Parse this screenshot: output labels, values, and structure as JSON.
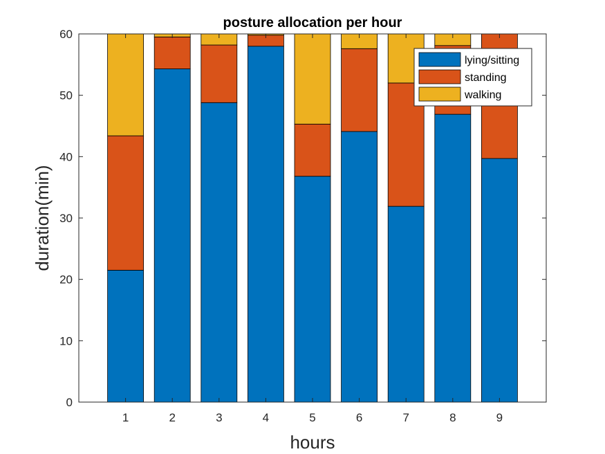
{
  "chart_data": {
    "type": "bar",
    "stacked": true,
    "title": "posture allocation per hour",
    "xlabel": "hours",
    "ylabel": "duration(min)",
    "ylim": [
      0,
      60
    ],
    "yticks": [
      0,
      10,
      20,
      30,
      40,
      50,
      60
    ],
    "categories": [
      "1",
      "2",
      "3",
      "4",
      "5",
      "6",
      "7",
      "8",
      "9"
    ],
    "series": [
      {
        "name": "lying/sitting",
        "color": "#0072BD",
        "values": [
          21.5,
          54.3,
          48.8,
          58.0,
          36.8,
          44.1,
          31.9,
          46.9,
          39.7
        ]
      },
      {
        "name": "standing",
        "color": "#D95319",
        "values": [
          21.9,
          5.2,
          9.4,
          1.8,
          8.5,
          13.5,
          20.1,
          11.2,
          20.3
        ]
      },
      {
        "name": "walking",
        "color": "#EDB120",
        "values": [
          16.6,
          0.5,
          1.8,
          0.2,
          14.7,
          2.4,
          8.0,
          1.9,
          0.0
        ]
      }
    ],
    "grid": false,
    "legend_position": "top-right"
  }
}
